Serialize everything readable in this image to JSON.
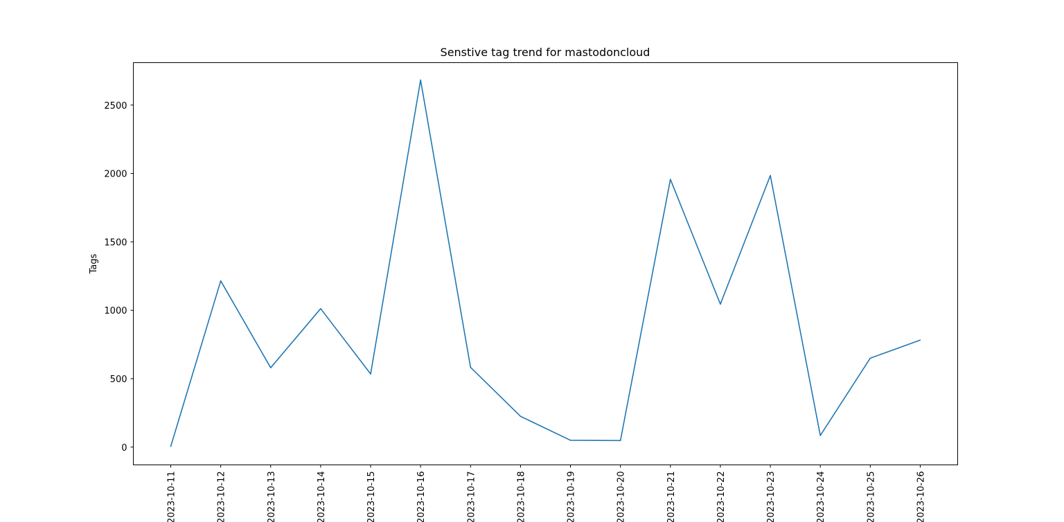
{
  "chart_data": {
    "type": "line",
    "title": "Senstive tag trend for mastodoncloud",
    "xlabel": "",
    "ylabel": "Tags",
    "x": [
      "2023-10-11",
      "2023-10-12",
      "2023-10-13",
      "2023-10-14",
      "2023-10-15",
      "2023-10-16",
      "2023-10-17",
      "2023-10-18",
      "2023-10-19",
      "2023-10-20",
      "2023-10-21",
      "2023-10-22",
      "2023-10-23",
      "2023-10-24",
      "2023-10-25",
      "2023-10-26"
    ],
    "series": [
      {
        "color": "#1f77b4",
        "values": [
          5,
          1215,
          580,
          1012,
          535,
          2683,
          583,
          225,
          50,
          48,
          1957,
          1045,
          1985,
          85,
          650,
          782
        ]
      }
    ],
    "yticks": [
      0,
      500,
      1000,
      1500,
      2000,
      2500
    ],
    "ylim": [
      -130,
      2810
    ],
    "grid": false,
    "legend": "none"
  }
}
